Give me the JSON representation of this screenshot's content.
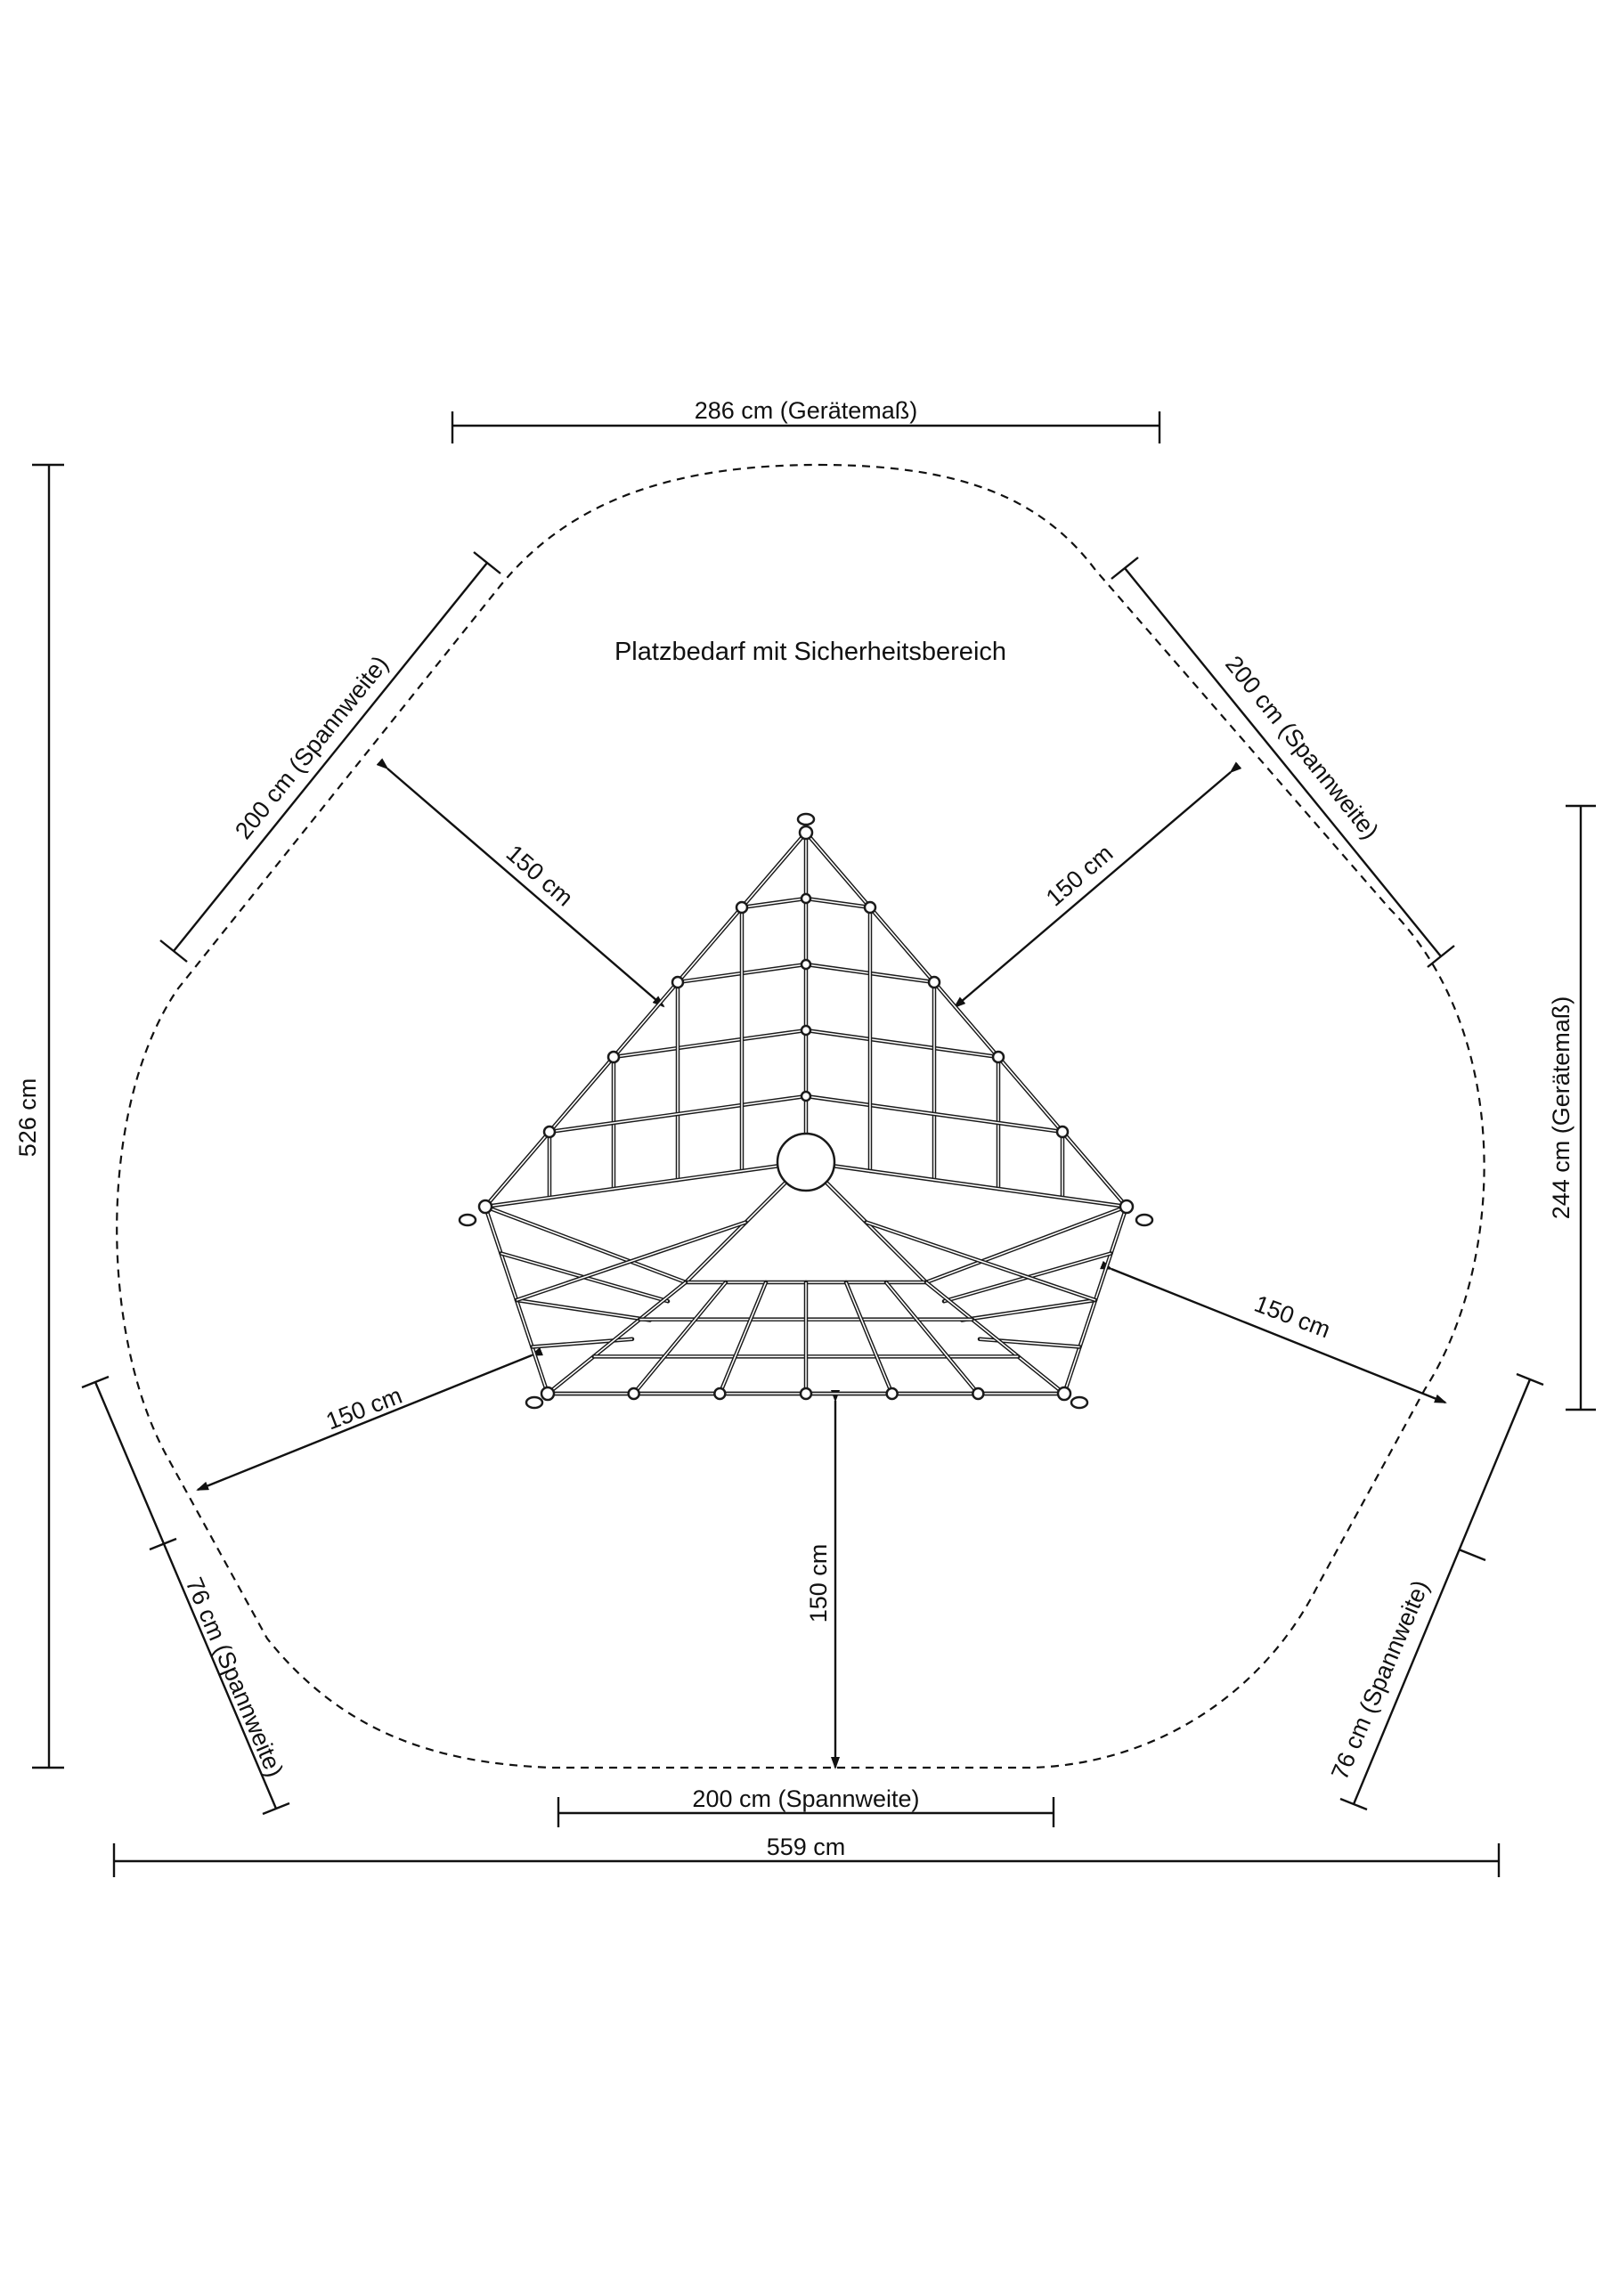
{
  "title": "Platzbedarf mit Sicherheitsbereich",
  "dimensions": {
    "top_width": "286 cm (Gerätemaß)",
    "left_height": "526 cm",
    "right_height": "244 cm (Gerätemaß)",
    "bottom_width": "559 cm",
    "bottom_span": "200 cm (Spannweite)",
    "upper_left_span": "200 cm (Spannweite)",
    "upper_right_span": "200 cm (Spannweite)",
    "lower_left_span": "76 cm (Spannweite)",
    "lower_right_span": "76 cm (Spannweite)",
    "clearance_upper_left": "150 cm",
    "clearance_upper_right": "150 cm",
    "clearance_lower_left": "150 cm",
    "clearance_lower_right": "150 cm",
    "clearance_bottom": "150 cm"
  },
  "colors": {
    "line": "#111111",
    "background": "#ffffff"
  }
}
